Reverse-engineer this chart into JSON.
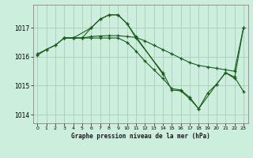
{
  "title": "Graphe pression niveau de la mer (hPa)",
  "background_color": "#cceedd",
  "grid_color": "#aaccbb",
  "line_color": "#1a5c1a",
  "xlim": [
    -0.5,
    23.5
  ],
  "ylim": [
    1013.7,
    1017.8
  ],
  "yticks": [
    1014,
    1015,
    1016,
    1017
  ],
  "xticks": [
    0,
    1,
    2,
    3,
    4,
    5,
    6,
    7,
    8,
    9,
    10,
    11,
    12,
    13,
    14,
    15,
    16,
    17,
    18,
    19,
    20,
    21,
    22,
    23
  ],
  "series": [
    {
      "x": [
        0,
        1,
        2,
        3,
        4,
        6,
        7,
        8,
        9,
        10,
        11,
        14
      ],
      "y": [
        1016.05,
        1016.25,
        1016.4,
        1016.65,
        1016.65,
        1017.0,
        1017.3,
        1017.45,
        1017.45,
        1017.15,
        1016.7,
        1015.4
      ]
    },
    {
      "x": [
        0,
        1,
        2,
        3,
        4,
        5,
        6,
        7,
        8,
        9,
        10,
        11,
        12,
        13,
        14,
        15,
        16,
        17,
        18,
        19,
        20,
        21,
        22,
        23
      ],
      "y": [
        1016.1,
        1016.25,
        1016.4,
        1016.65,
        1016.65,
        1016.65,
        1016.7,
        1016.72,
        1016.73,
        1016.73,
        1016.7,
        1016.67,
        1016.55,
        1016.4,
        1016.25,
        1016.1,
        1015.95,
        1015.8,
        1015.7,
        1015.65,
        1015.6,
        1015.55,
        1015.5,
        1017.0
      ]
    },
    {
      "x": [
        3,
        4,
        5,
        6,
        7,
        8,
        9,
        10,
        11,
        12,
        13,
        14,
        15,
        16,
        17,
        18,
        19,
        20,
        21,
        22,
        23
      ],
      "y": [
        1016.65,
        1016.65,
        1016.65,
        1016.65,
        1016.65,
        1016.65,
        1016.65,
        1016.5,
        1016.2,
        1015.85,
        1015.55,
        1015.25,
        1014.9,
        1014.85,
        1014.6,
        1014.2,
        1014.75,
        1015.05,
        1015.45,
        1015.3,
        1014.8
      ]
    },
    {
      "x": [
        3,
        4,
        5,
        6,
        7,
        8,
        9,
        10,
        11,
        14,
        15,
        16,
        17,
        18,
        20,
        21,
        22,
        23
      ],
      "y": [
        1016.65,
        1016.65,
        1016.65,
        1017.0,
        1017.3,
        1017.45,
        1017.45,
        1017.15,
        1016.65,
        1015.45,
        1014.85,
        1014.82,
        1014.55,
        1014.2,
        1015.05,
        1015.45,
        1015.25,
        1017.0
      ]
    }
  ]
}
